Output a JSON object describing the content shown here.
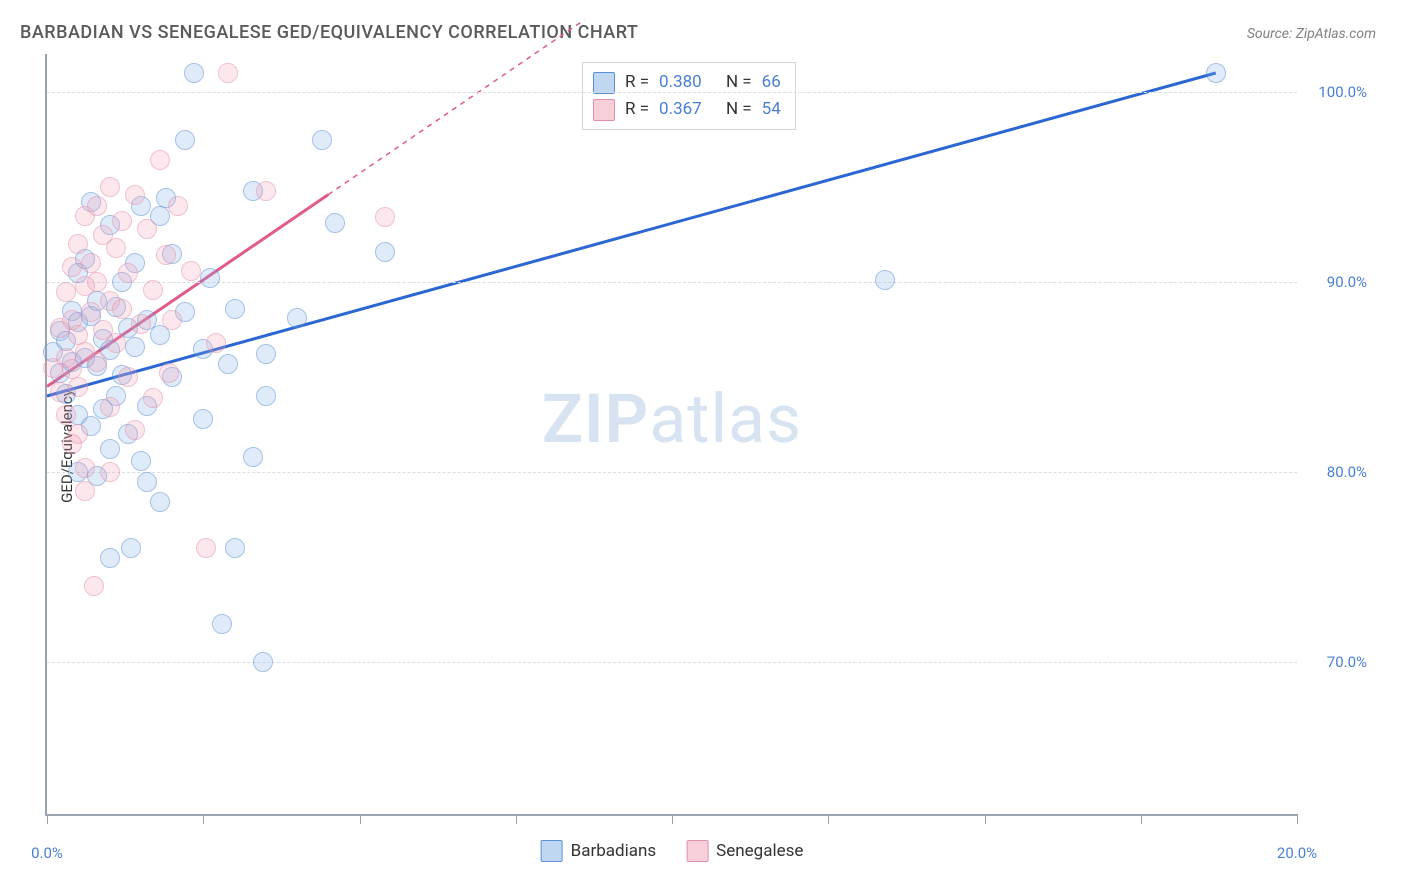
{
  "title": "BARBADIAN VS SENEGALESE GED/EQUIVALENCY CORRELATION CHART",
  "source": "Source: ZipAtlas.com",
  "ylabel": "GED/Equivalency",
  "watermark_a": "ZIP",
  "watermark_b": "atlas",
  "chart": {
    "type": "scatter",
    "xlim": [
      0,
      20
    ],
    "ylim": [
      62,
      102
    ],
    "ytick_values": [
      70,
      80,
      90,
      100
    ],
    "ytick_labels": [
      "70.0%",
      "80.0%",
      "90.0%",
      "100.0%"
    ],
    "xtick_values": [
      0,
      2.5,
      5,
      7.5,
      10,
      12.5,
      15,
      17.5,
      20
    ],
    "xtick_labels": {
      "0": "0.0%",
      "20": "20.0%"
    },
    "grid_color": "#d8dde3",
    "axis_color": "#9aa2ad",
    "tick_label_color": "#4a7fd4",
    "background_color": "#ffffff",
    "marker_size": 18,
    "series": [
      {
        "id": "barbadians",
        "label": "Barbadians",
        "fill_color": "rgba(130,175,230,0.45)",
        "stroke_color": "#5b8fd6",
        "line_color": "#2b66d3",
        "R": "0.380",
        "N": "66",
        "trend": {
          "x1": 0,
          "y1": 84.0,
          "x2": 18.7,
          "y2": 101.0
        },
        "points": [
          [
            0.1,
            86.3
          ],
          [
            0.2,
            85.2
          ],
          [
            0.2,
            87.4
          ],
          [
            0.3,
            86.9
          ],
          [
            0.3,
            84.1
          ],
          [
            0.4,
            88.5
          ],
          [
            0.4,
            85.8
          ],
          [
            0.5,
            90.5
          ],
          [
            0.5,
            87.9
          ],
          [
            0.5,
            83.0
          ],
          [
            0.6,
            91.2
          ],
          [
            0.6,
            86.0
          ],
          [
            0.7,
            94.2
          ],
          [
            0.7,
            88.2
          ],
          [
            0.7,
            82.4
          ],
          [
            0.8,
            89.0
          ],
          [
            0.8,
            85.6
          ],
          [
            0.9,
            87.0
          ],
          [
            0.9,
            83.3
          ],
          [
            1.0,
            93.0
          ],
          [
            1.0,
            86.4
          ],
          [
            1.0,
            81.2
          ],
          [
            1.1,
            88.7
          ],
          [
            1.1,
            84.0
          ],
          [
            1.2,
            90.0
          ],
          [
            1.2,
            85.1
          ],
          [
            1.3,
            87.6
          ],
          [
            1.3,
            82.0
          ],
          [
            1.4,
            91.0
          ],
          [
            1.4,
            86.6
          ],
          [
            1.5,
            94.0
          ],
          [
            1.5,
            80.6
          ],
          [
            1.6,
            88.0
          ],
          [
            1.6,
            83.5
          ],
          [
            1.8,
            93.5
          ],
          [
            1.8,
            87.2
          ],
          [
            1.35,
            76.0
          ],
          [
            2.0,
            91.5
          ],
          [
            2.0,
            85.0
          ],
          [
            2.2,
            97.5
          ],
          [
            2.2,
            88.4
          ],
          [
            2.35,
            101.0
          ],
          [
            2.5,
            86.5
          ],
          [
            2.5,
            82.8
          ],
          [
            3.0,
            88.6
          ],
          [
            3.0,
            76.0
          ],
          [
            2.8,
            72.0
          ],
          [
            3.3,
            80.8
          ],
          [
            3.5,
            86.2
          ],
          [
            3.5,
            84.0
          ],
          [
            4.0,
            88.1
          ],
          [
            4.4,
            97.5
          ],
          [
            4.6,
            93.1
          ],
          [
            3.45,
            70.0
          ],
          [
            5.4,
            91.6
          ],
          [
            1.0,
            75.5
          ],
          [
            0.8,
            79.8
          ],
          [
            0.5,
            80.0
          ],
          [
            1.6,
            79.5
          ],
          [
            1.8,
            78.4
          ],
          [
            2.9,
            85.7
          ],
          [
            13.4,
            90.1
          ],
          [
            18.7,
            101.0
          ],
          [
            1.9,
            94.4
          ],
          [
            3.3,
            94.8
          ],
          [
            2.6,
            90.2
          ]
        ]
      },
      {
        "id": "senegalese",
        "label": "Senegalese",
        "fill_color": "rgba(240,160,180,0.45)",
        "stroke_color": "#e28fa8",
        "line_color": "#e05a8a",
        "R": "0.367",
        "N": "54",
        "trend": {
          "x1": 0,
          "y1": 84.5,
          "x2_solid": 4.5,
          "y2_solid": 94.6,
          "x2_dash": 8.6,
          "y2_dash": 103.8
        },
        "points": [
          [
            0.1,
            85.5
          ],
          [
            0.2,
            87.6
          ],
          [
            0.2,
            84.2
          ],
          [
            0.3,
            89.5
          ],
          [
            0.3,
            86.0
          ],
          [
            0.3,
            83.0
          ],
          [
            0.4,
            90.8
          ],
          [
            0.4,
            88.0
          ],
          [
            0.4,
            85.4
          ],
          [
            0.5,
            92.0
          ],
          [
            0.5,
            87.2
          ],
          [
            0.5,
            84.5
          ],
          [
            0.6,
            93.5
          ],
          [
            0.6,
            89.8
          ],
          [
            0.6,
            86.3
          ],
          [
            0.7,
            91.0
          ],
          [
            0.7,
            88.4
          ],
          [
            0.8,
            94.0
          ],
          [
            0.8,
            90.0
          ],
          [
            0.8,
            85.8
          ],
          [
            0.9,
            92.5
          ],
          [
            0.9,
            87.5
          ],
          [
            1.0,
            95.0
          ],
          [
            1.0,
            89.0
          ],
          [
            1.0,
            83.4
          ],
          [
            1.1,
            91.8
          ],
          [
            1.1,
            86.8
          ],
          [
            1.2,
            93.2
          ],
          [
            1.2,
            88.6
          ],
          [
            1.3,
            90.5
          ],
          [
            1.3,
            85.0
          ],
          [
            1.4,
            94.6
          ],
          [
            1.5,
            87.8
          ],
          [
            1.6,
            92.8
          ],
          [
            1.7,
            89.6
          ],
          [
            1.8,
            96.4
          ],
          [
            1.9,
            91.4
          ],
          [
            2.0,
            88.0
          ],
          [
            2.1,
            94.0
          ],
          [
            2.3,
            90.6
          ],
          [
            2.7,
            86.8
          ],
          [
            2.9,
            101.0
          ],
          [
            3.5,
            94.8
          ],
          [
            0.75,
            74.0
          ],
          [
            0.5,
            82.0
          ],
          [
            0.6,
            80.2
          ],
          [
            0.4,
            81.5
          ],
          [
            1.0,
            80.0
          ],
          [
            0.6,
            79.0
          ],
          [
            5.4,
            93.4
          ],
          [
            2.55,
            76.0
          ],
          [
            1.4,
            82.2
          ],
          [
            1.7,
            83.9
          ],
          [
            1.95,
            85.2
          ]
        ]
      }
    ]
  },
  "legend_top": {
    "r_label": "R =",
    "n_label": "N ="
  },
  "legend_bottom": {
    "s1": "Barbadians",
    "s2": "Senegalese"
  }
}
